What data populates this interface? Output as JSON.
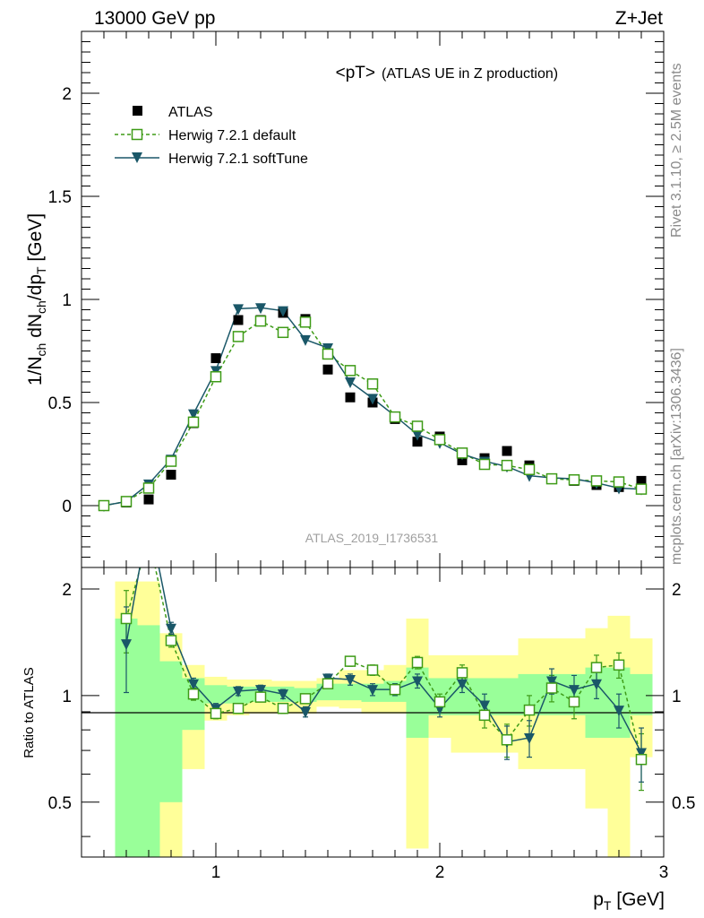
{
  "header": {
    "left": "13000 GeV pp",
    "right": "Z+Jet"
  },
  "side_labels": {
    "rivet": "Rivet 3.1.10, ≥ 2.5M events",
    "mcplots": "mcplots.cern.ch [arXiv:1306.3436]"
  },
  "analysis_label": "ATLAS_2019_I1736531",
  "chart_data": [
    {
      "type": "scatter",
      "title": "<pT> (ATLAS UE in Z production)",
      "title_main": "<pT>",
      "title_sub": "(ATLAS UE in Z production)",
      "ylabel": "1/N_ch dN_ch/dp_T [GeV]",
      "xlim": [
        0.4,
        3.0
      ],
      "ylim": [
        -0.3,
        2.3
      ],
      "x_ticks": [
        "1",
        "2",
        "3"
      ],
      "y_ticks": [
        "0",
        "0.5",
        "1",
        "1.5",
        "2"
      ],
      "legend": {
        "placement": "top-left",
        "entries": [
          "ATLAS",
          "Herwig 7.2.1 default",
          "Herwig 7.2.1 softTune"
        ]
      },
      "colors": {
        "atlas": "#000000",
        "default": "#3e9b17",
        "softtune": "#1a5768"
      },
      "series": [
        {
          "name": "ATLAS",
          "style": "square-filled",
          "x": [
            0.5,
            0.6,
            0.7,
            0.8,
            0.9,
            1.0,
            1.1,
            1.2,
            1.3,
            1.4,
            1.5,
            1.6,
            1.7,
            1.8,
            1.9,
            2.0,
            2.1,
            2.2,
            2.3,
            2.4,
            2.5,
            2.6,
            2.7,
            2.8,
            2.9
          ],
          "y": [
            0.0,
            0.015,
            0.03,
            0.15,
            0.4,
            0.715,
            0.9,
            0.9,
            0.935,
            0.905,
            0.66,
            0.525,
            0.5,
            0.42,
            0.31,
            0.335,
            0.22,
            0.23,
            0.265,
            0.195,
            0.13,
            0.12,
            0.1,
            0.09,
            0.12
          ]
        },
        {
          "name": "Herwig 7.2.1 default",
          "style": "square-open-dashed",
          "x": [
            0.5,
            0.6,
            0.7,
            0.8,
            0.9,
            1.0,
            1.1,
            1.2,
            1.3,
            1.4,
            1.5,
            1.6,
            1.7,
            1.8,
            1.9,
            2.0,
            2.1,
            2.2,
            2.3,
            2.4,
            2.5,
            2.6,
            2.7,
            2.8,
            2.9
          ],
          "y": [
            0.0,
            0.02,
            0.085,
            0.215,
            0.405,
            0.625,
            0.82,
            0.895,
            0.84,
            0.89,
            0.735,
            0.655,
            0.59,
            0.43,
            0.385,
            0.32,
            0.255,
            0.2,
            0.195,
            0.175,
            0.13,
            0.125,
            0.12,
            0.115,
            0.08
          ]
        },
        {
          "name": "Herwig 7.2.1 softTune",
          "style": "triangle-down-solid",
          "x": [
            0.5,
            0.6,
            0.7,
            0.8,
            0.9,
            1.0,
            1.1,
            1.2,
            1.3,
            1.4,
            1.5,
            1.6,
            1.7,
            1.8,
            1.9,
            2.0,
            2.1,
            2.2,
            2.3,
            2.4,
            2.5,
            2.6,
            2.7,
            2.8,
            2.9
          ],
          "y": [
            0.0,
            0.02,
            0.105,
            0.225,
            0.445,
            0.655,
            0.955,
            0.96,
            0.945,
            0.805,
            0.765,
            0.6,
            0.52,
            0.435,
            0.345,
            0.305,
            0.25,
            0.215,
            0.19,
            0.145,
            0.135,
            0.13,
            0.11,
            0.085,
            0.08
          ]
        }
      ]
    },
    {
      "type": "line",
      "ylabel": "Ratio to ATLAS",
      "xlabel": "p_T [GeV]",
      "xlim": [
        0.4,
        3.0
      ],
      "ylim": [
        0.35,
        2.3
      ],
      "x_ticks": [
        "1",
        "2",
        "3"
      ],
      "y_ticks": [
        "0.5",
        "1",
        "2"
      ],
      "bands": {
        "bins": [
          [
            0.55,
            0.65
          ],
          [
            0.65,
            0.75
          ],
          [
            0.75,
            0.85
          ],
          [
            0.85,
            0.95
          ],
          [
            0.95,
            1.05
          ],
          [
            1.05,
            1.15
          ],
          [
            1.15,
            1.25
          ],
          [
            1.25,
            1.35
          ],
          [
            1.35,
            1.45
          ],
          [
            1.45,
            1.55
          ],
          [
            1.55,
            1.65
          ],
          [
            1.65,
            1.75
          ],
          [
            1.75,
            1.85
          ],
          [
            1.85,
            1.95
          ],
          [
            1.95,
            2.05
          ],
          [
            2.05,
            2.15
          ],
          [
            2.15,
            2.25
          ],
          [
            2.25,
            2.35
          ],
          [
            2.35,
            2.45
          ],
          [
            2.45,
            2.55
          ],
          [
            2.55,
            2.65
          ],
          [
            2.65,
            2.75
          ],
          [
            2.75,
            2.85
          ],
          [
            2.85,
            2.95
          ]
        ],
        "green_low": [
          0.3,
          0.3,
          0.5,
          0.8,
          0.95,
          0.95,
          0.96,
          0.96,
          0.96,
          0.97,
          0.97,
          0.96,
          0.96,
          0.76,
          0.88,
          0.88,
          0.88,
          0.88,
          0.88,
          0.88,
          0.88,
          0.76,
          0.76,
          0.88
        ],
        "green_high": [
          1.65,
          1.58,
          1.25,
          1.12,
          1.07,
          1.06,
          1.06,
          1.06,
          1.05,
          1.08,
          1.08,
          1.08,
          1.1,
          1.2,
          1.12,
          1.12,
          1.12,
          1.12,
          1.15,
          1.15,
          1.15,
          1.2,
          1.2,
          1.15
        ],
        "yellow_low": [
          0.3,
          0.3,
          0.3,
          0.62,
          0.85,
          0.88,
          0.89,
          0.89,
          0.89,
          0.93,
          0.92,
          0.89,
          0.89,
          0.37,
          0.76,
          0.69,
          0.69,
          0.69,
          0.62,
          0.62,
          0.62,
          0.48,
          0.3,
          0.67
        ],
        "yellow_high": [
          2.1,
          2.1,
          1.5,
          1.22,
          1.13,
          1.11,
          1.11,
          1.1,
          1.1,
          1.12,
          1.18,
          1.18,
          1.22,
          1.65,
          1.3,
          1.3,
          1.3,
          1.3,
          1.45,
          1.45,
          1.45,
          1.55,
          1.68,
          1.45
        ]
      },
      "series": [
        {
          "name": "Herwig 7.2.1 default",
          "style": "square-open-dashed",
          "x": [
            0.6,
            0.7,
            0.8,
            0.9,
            1.0,
            1.1,
            1.2,
            1.3,
            1.4,
            1.5,
            1.6,
            1.7,
            1.8,
            1.9,
            2.0,
            2.1,
            2.2,
            2.3,
            2.4,
            2.5,
            2.6,
            2.7,
            2.8,
            2.9
          ],
          "y": [
            1.65,
            2.8,
            1.43,
            1.01,
            0.89,
            0.92,
            0.99,
            0.92,
            0.98,
            1.08,
            1.25,
            1.18,
            1.04,
            1.24,
            0.96,
            1.16,
            0.88,
            0.75,
            0.91,
            1.05,
            0.96,
            1.2,
            1.22,
            0.66
          ],
          "yerr": [
            0.33,
            0.4,
            0.06,
            0.04,
            0.03,
            0.03,
            0.03,
            0.03,
            0.03,
            0.03,
            0.04,
            0.04,
            0.04,
            0.05,
            0.05,
            0.06,
            0.07,
            0.08,
            0.09,
            0.09,
            0.1,
            0.1,
            0.1,
            0.12
          ]
        },
        {
          "name": "Herwig 7.2.1 softTune",
          "style": "triangle-down-solid",
          "x": [
            0.6,
            0.7,
            0.8,
            0.9,
            1.0,
            1.1,
            1.2,
            1.3,
            1.4,
            1.5,
            1.6,
            1.7,
            1.8,
            1.9,
            2.0,
            2.1,
            2.2,
            2.3,
            2.4,
            2.5,
            2.6,
            2.7,
            2.8,
            2.9
          ],
          "y": [
            1.4,
            3.2,
            1.55,
            1.08,
            0.92,
            1.03,
            1.04,
            1.01,
            0.9,
            1.12,
            1.11,
            1.04,
            1.04,
            1.1,
            0.92,
            1.08,
            0.94,
            0.74,
            0.76,
            1.1,
            1.04,
            1.08,
            0.91,
            0.69
          ],
          "yerr": [
            0.38,
            0.4,
            0.06,
            0.04,
            0.03,
            0.03,
            0.03,
            0.03,
            0.03,
            0.03,
            0.04,
            0.04,
            0.04,
            0.05,
            0.05,
            0.06,
            0.07,
            0.08,
            0.09,
            0.09,
            0.1,
            0.1,
            0.1,
            0.12
          ]
        }
      ]
    }
  ]
}
